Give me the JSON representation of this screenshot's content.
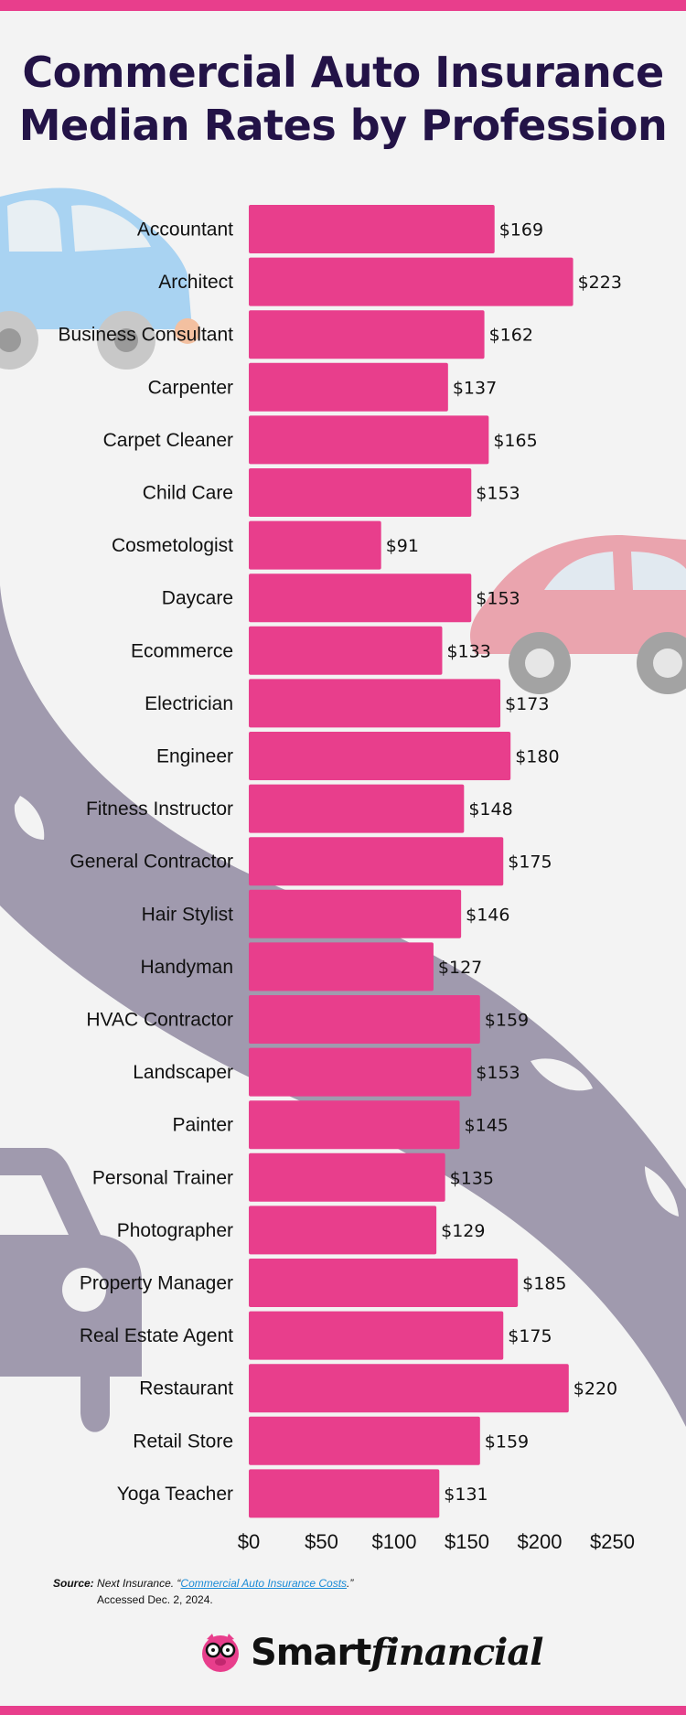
{
  "title_line1": "Commercial Auto Insurance",
  "title_line2": "Median Rates by Profession",
  "chart_data": {
    "type": "bar",
    "orientation": "horizontal",
    "categories": [
      "Accountant",
      "Architect",
      "Business Consultant",
      "Carpenter",
      "Carpet Cleaner",
      "Child Care",
      "Cosmetologist",
      "Daycare",
      "Ecommerce",
      "Electrician",
      "Engineer",
      "Fitness Instructor",
      "General Contractor",
      "Hair Stylist",
      "Handyman",
      "HVAC Contractor",
      "Landscaper",
      "Painter",
      "Personal Trainer",
      "Photographer",
      "Property Manager",
      "Real Estate Agent",
      "Restaurant",
      "Retail Store",
      "Yoga Teacher"
    ],
    "values": [
      169,
      223,
      162,
      137,
      165,
      153,
      91,
      153,
      133,
      173,
      180,
      148,
      175,
      146,
      127,
      159,
      153,
      145,
      135,
      129,
      185,
      175,
      220,
      159,
      131
    ],
    "value_labels": [
      "$169",
      "$223",
      "$162",
      "$137",
      "$165",
      "$153",
      "$91",
      "$153",
      "$133",
      "$173",
      "$180",
      "$148",
      "$175",
      "$146",
      "$127",
      "$159",
      "$153",
      "$145",
      "$135",
      "$129",
      "$185",
      "$175",
      "$220",
      "$159",
      "$131"
    ],
    "xticks": [
      0,
      50,
      100,
      150,
      200,
      250
    ],
    "xtick_labels": [
      "$0",
      "$50",
      "$100",
      "$150",
      "$200",
      "$250"
    ],
    "xlim": [
      0,
      250
    ],
    "bar_color": "#e83e8c",
    "grid": false
  },
  "source": {
    "label": "Source:",
    "text_before": "Next Insurance. “",
    "link_text": "Commercial Auto Insurance Costs",
    "text_after": ".”",
    "accessed": "Accessed Dec. 2, 2024."
  },
  "logo": {
    "part1": "Smart",
    "part2": "financial",
    "icon": "piggy-bank-with-glasses-icon"
  },
  "colors": {
    "accent": "#e83e8c",
    "title": "#231347",
    "road": "#a09aae",
    "blue_car": "#a9d3f2",
    "pink_car": "#eaa4ae"
  }
}
